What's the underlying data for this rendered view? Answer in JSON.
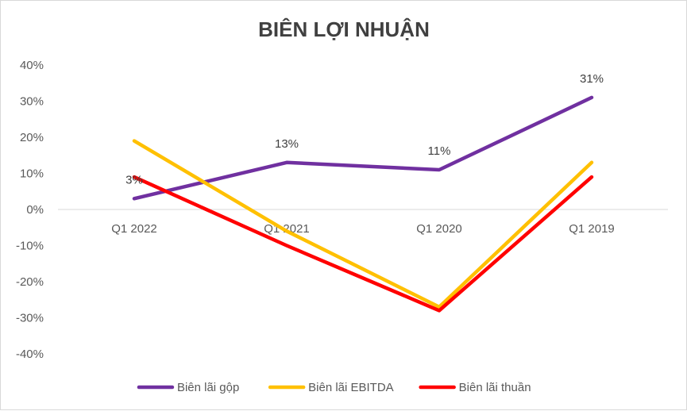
{
  "chart_data": {
    "type": "line",
    "title": "BIÊN LỢI NHUẬN",
    "categories": [
      "Q1 2022",
      "Q1 2021",
      "Q1 2020",
      "Q1 2019"
    ],
    "ylim": [
      -0.4,
      0.4
    ],
    "yticks": [
      0.4,
      0.3,
      0.2,
      0.1,
      0,
      -0.1,
      -0.2,
      -0.3,
      -0.4
    ],
    "ytick_labels": [
      "40%",
      "30%",
      "20%",
      "10%",
      "0%",
      "-10%",
      "-20%",
      "-30%",
      "-40%"
    ],
    "grid": false,
    "legend_position": "bottom",
    "series": [
      {
        "name": "Biên lãi gộp",
        "color": "#7030A0",
        "values": [
          0.03,
          0.13,
          0.11,
          0.31
        ],
        "data_labels": [
          "3%",
          "13%",
          "11%",
          "31%"
        ]
      },
      {
        "name": "Biên lãi EBITDA",
        "color": "#FFC000",
        "values": [
          0.19,
          -0.06,
          -0.27,
          0.13
        ]
      },
      {
        "name": "Biên lãi thuần",
        "color": "#FF0000",
        "values": [
          0.09,
          -0.1,
          -0.28,
          0.09
        ]
      }
    ]
  }
}
